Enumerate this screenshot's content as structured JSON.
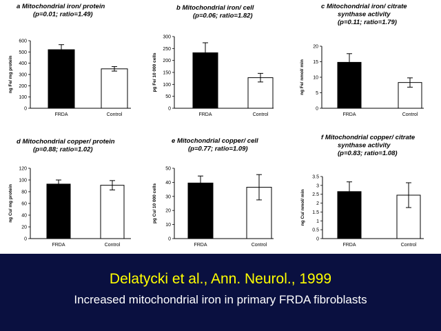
{
  "footer": {
    "citation": "Delatycki et al., Ann. Neurol., 1999",
    "subtitle": "Increased mitochondrial iron in primary FRDA fibroblasts"
  },
  "colors": {
    "footer_bg": "#0a1040",
    "citation": "#ffff00",
    "bar_frda": "#000000",
    "bar_control": "#ffffff"
  },
  "chart_data": [
    {
      "type": "bar",
      "letter": "a",
      "title_lines": [
        "Mitochondrial iron/ protein",
        "(p=0.01; ratio=1.49)"
      ],
      "ylabel": "ng Fe/ mg protein",
      "categories": [
        "FRDA",
        "Control"
      ],
      "values": [
        520,
        350
      ],
      "errors": [
        45,
        20
      ],
      "ylim": [
        0,
        600
      ],
      "yticks": [
        "0",
        "100",
        "200",
        "300",
        "400",
        "500",
        "600"
      ]
    },
    {
      "type": "bar",
      "letter": "b",
      "title_lines": [
        "Mitochondrial iron/ cell",
        "(p=0.06; ratio=1.82)"
      ],
      "ylabel": "pg Fe/ 10 000 cells",
      "categories": [
        "FRDA",
        "Control"
      ],
      "values": [
        232,
        128
      ],
      "errors": [
        42,
        18
      ],
      "ylim": [
        0,
        300
      ],
      "yticks": [
        "0",
        "50",
        "100",
        "150",
        "200",
        "250",
        "300"
      ]
    },
    {
      "type": "bar",
      "letter": "c",
      "title_lines": [
        "Mitochondrial iron/ citrate",
        "synthase activity",
        "(p=0.11; ratio=1.79)"
      ],
      "ylabel": "ng Fe/ nmol/ min",
      "categories": [
        "FRDA",
        "Control"
      ],
      "values": [
        14.8,
        8.3
      ],
      "errors": [
        2.8,
        1.5
      ],
      "ylim": [
        0,
        20
      ],
      "yticks": [
        "0",
        "5",
        "10",
        "15",
        "20"
      ]
    },
    {
      "type": "bar",
      "letter": "d",
      "title_lines": [
        "Mitochondrial copper/ protein",
        "(p=0.88; ratio=1.02)"
      ],
      "ylabel": "ng Cu/ mg protein",
      "categories": [
        "FRDA",
        "Control"
      ],
      "values": [
        93,
        91
      ],
      "errors": [
        7,
        8
      ],
      "ylim": [
        0,
        120
      ],
      "yticks": [
        "0",
        "20",
        "40",
        "60",
        "80",
        "100",
        "120"
      ]
    },
    {
      "type": "bar",
      "letter": "e",
      "title_lines": [
        "Mitochondrial copper/ cell",
        "(p=0.77; ratio=1.09)"
      ],
      "ylabel": "pg Cu/ 10 000 cells",
      "categories": [
        "FRDA",
        "Control"
      ],
      "values": [
        39.5,
        36.5
      ],
      "errors": [
        5,
        9
      ],
      "ylim": [
        0,
        50
      ],
      "yticks": [
        "0",
        "10",
        "20",
        "30",
        "40",
        "50"
      ]
    },
    {
      "type": "bar",
      "letter": "f",
      "title_lines": [
        "Mitochondrial copper/ citrate",
        "synthase activity",
        "(p=0.83; ratio=1.08)"
      ],
      "ylabel": "ng Cu/ nmol/ min",
      "categories": [
        "FRDA",
        "Control"
      ],
      "values": [
        2.65,
        2.45
      ],
      "errors": [
        0.55,
        0.7
      ],
      "ylim": [
        0,
        3.5
      ],
      "yticks": [
        "0",
        "0.5",
        "1",
        "1.5",
        "2",
        "2.5",
        "3",
        "3.5"
      ]
    }
  ]
}
